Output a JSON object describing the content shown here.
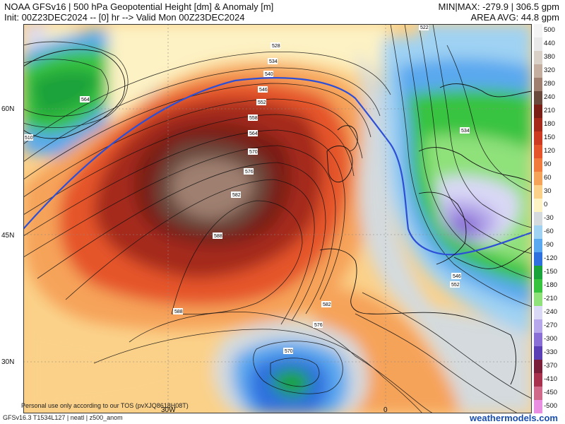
{
  "header": {
    "title": "NOAA GFSv16 | 500 hPa Geopotential Height [dm] & Anomaly [m]",
    "init": "Init: 00Z23DEC2024 -- [0] hr --> Valid Mon 00Z23DEC2024",
    "minmax": "MIN|MAX: -279.9 | 306.5 gpm",
    "area_avg": "AREA AVG: 44.8 gpm"
  },
  "axes": {
    "lat_labels": [
      "60N",
      "45N",
      "30N"
    ],
    "lon_labels": [
      "30W",
      "0"
    ]
  },
  "contour_labels": [
    "528",
    "534",
    "540",
    "546",
    "552",
    "558",
    "564",
    "570",
    "576",
    "582",
    "588",
    "588",
    "582",
    "576",
    "570",
    "564",
    "510",
    "522",
    "534",
    "546",
    "552"
  ],
  "colorbar": [
    {
      "label": "500",
      "color": "#f4f4f4"
    },
    {
      "label": "440",
      "color": "#e9e9e9"
    },
    {
      "label": "380",
      "color": "#d9d0c8"
    },
    {
      "label": "320",
      "color": "#c4aea0"
    },
    {
      "label": "280",
      "color": "#9e7f70"
    },
    {
      "label": "240",
      "color": "#6b4a3e"
    },
    {
      "label": "210",
      "color": "#7a1f16"
    },
    {
      "label": "180",
      "color": "#a52a1a"
    },
    {
      "label": "150",
      "color": "#cc3a22"
    },
    {
      "label": "120",
      "color": "#e5552c"
    },
    {
      "label": "90",
      "color": "#f17b3c"
    },
    {
      "label": "60",
      "color": "#f6a35a"
    },
    {
      "label": "30",
      "color": "#fbd189"
    },
    {
      "label": "0",
      "color": "#fdf2c4"
    },
    {
      "label": "-30",
      "color": "#d4dadd"
    },
    {
      "label": "-60",
      "color": "#9fd2f3"
    },
    {
      "label": "-90",
      "color": "#5aa8ef"
    },
    {
      "label": "-120",
      "color": "#2f70df"
    },
    {
      "label": "-150",
      "color": "#1aa33a"
    },
    {
      "label": "-180",
      "color": "#38c33f"
    },
    {
      "label": "-210",
      "color": "#8fe17a"
    },
    {
      "label": "-240",
      "color": "#d9d8f5"
    },
    {
      "label": "-270",
      "color": "#b6a8ea"
    },
    {
      "label": "-300",
      "color": "#8a6fd6"
    },
    {
      "label": "-330",
      "color": "#5a3fb5"
    },
    {
      "label": "-370",
      "color": "#7a1f3a"
    },
    {
      "label": "-410",
      "color": "#a8324d"
    },
    {
      "label": "-450",
      "color": "#d06a8a"
    },
    {
      "label": "-500",
      "color": "#e98ee0"
    }
  ],
  "footer": {
    "note": "Personal use only according to our TOS (pvXJQ8618H08T)",
    "product": "GFSv16.3 T1534L127 | neatl | z500_anom",
    "brand": "weathermodels.com"
  }
}
